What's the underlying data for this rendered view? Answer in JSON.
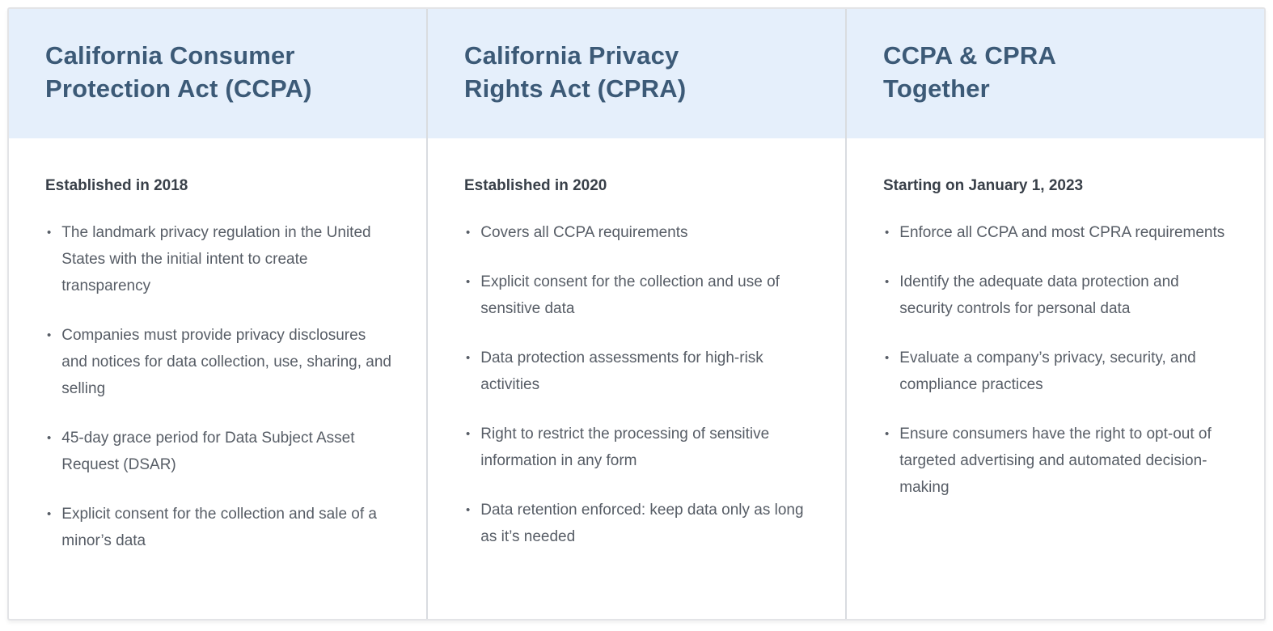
{
  "colors": {
    "page_bg": "#ffffff",
    "header_bg": "#e5effb",
    "title": "#3c5a77",
    "subtitle": "#394049",
    "body_text": "#575d66",
    "divider": "#d9dce0",
    "border": "#e3e4e7"
  },
  "bullet_glyph": "•",
  "columns": [
    {
      "id": "ccpa",
      "title_lines": [
        "California Consumer",
        "Protection Act (CCPA)"
      ],
      "subtitle": "Established in 2018",
      "bullets": [
        "The landmark privacy regulation in the United States with the initial intent to create transparency",
        "Companies must provide privacy disclosures and notices for data collection, use, sharing, and selling",
        "45-day grace period for Data Subject Asset Request (DSAR)",
        "Explicit consent for the collection and sale of a minor’s data"
      ]
    },
    {
      "id": "cpra",
      "title_lines": [
        "California Privacy",
        "Rights Act (CPRA)"
      ],
      "subtitle": "Established in 2020",
      "bullets": [
        "Covers all CCPA requirements",
        "Explicit consent for the collection and use of sensitive data",
        "Data protection assessments for high-risk activities",
        "Right to restrict the processing of sensitive information in any form",
        "Data retention enforced: keep data only as long as it’s needed"
      ]
    },
    {
      "id": "together",
      "title_lines": [
        "CCPA & CPRA",
        "Together"
      ],
      "subtitle": "Starting on January 1, 2023",
      "bullets": [
        "Enforce all CCPA and most CPRA requirements",
        "Identify the adequate data protection and security controls for personal data",
        "Evaluate a company’s privacy, security, and compliance practices",
        "Ensure consumers have the right to opt-out of targeted advertising and automated decision-making"
      ]
    }
  ]
}
